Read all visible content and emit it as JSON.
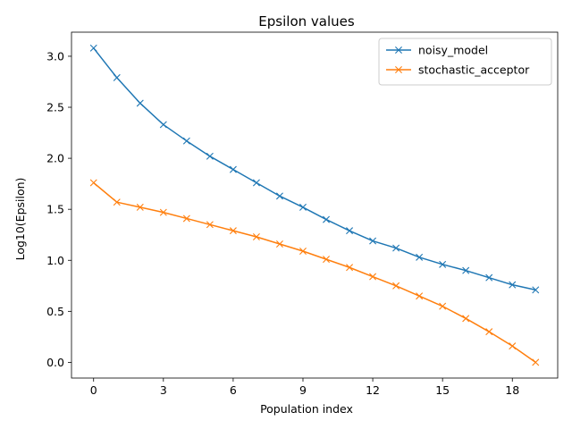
{
  "chart_data": {
    "type": "line",
    "title": "Epsilon values",
    "xlabel": "Population index",
    "ylabel": "Log10(Epsilon)",
    "xlim": [
      -0.95,
      19.95
    ],
    "ylim": [
      -0.154,
      3.236
    ],
    "xticks": [
      0,
      3,
      6,
      9,
      12,
      15,
      18
    ],
    "xtick_labels": [
      "0",
      "3",
      "6",
      "9",
      "12",
      "15",
      "18"
    ],
    "yticks": [
      0.0,
      0.5,
      1.0,
      1.5,
      2.0,
      2.5,
      3.0
    ],
    "ytick_labels": [
      "0.0",
      "0.5",
      "1.0",
      "1.5",
      "2.0",
      "2.5",
      "3.0"
    ],
    "grid": false,
    "legend_position": "top-right",
    "marker": "x",
    "x": [
      0,
      1,
      2,
      3,
      4,
      5,
      6,
      7,
      8,
      9,
      10,
      11,
      12,
      13,
      14,
      15,
      16,
      17,
      18,
      19
    ],
    "series": [
      {
        "name": "noisy_model",
        "color": "#1f77b4",
        "values": [
          3.08,
          2.79,
          2.54,
          2.33,
          2.17,
          2.02,
          1.89,
          1.76,
          1.63,
          1.52,
          1.4,
          1.29,
          1.19,
          1.12,
          1.03,
          0.96,
          0.9,
          0.83,
          0.76,
          0.71
        ]
      },
      {
        "name": "stochastic_acceptor",
        "color": "#ff7f0e",
        "values": [
          1.76,
          1.57,
          1.52,
          1.47,
          1.41,
          1.35,
          1.29,
          1.23,
          1.16,
          1.09,
          1.01,
          0.93,
          0.84,
          0.75,
          0.65,
          0.55,
          0.43,
          0.3,
          0.16,
          0.0
        ]
      }
    ]
  }
}
